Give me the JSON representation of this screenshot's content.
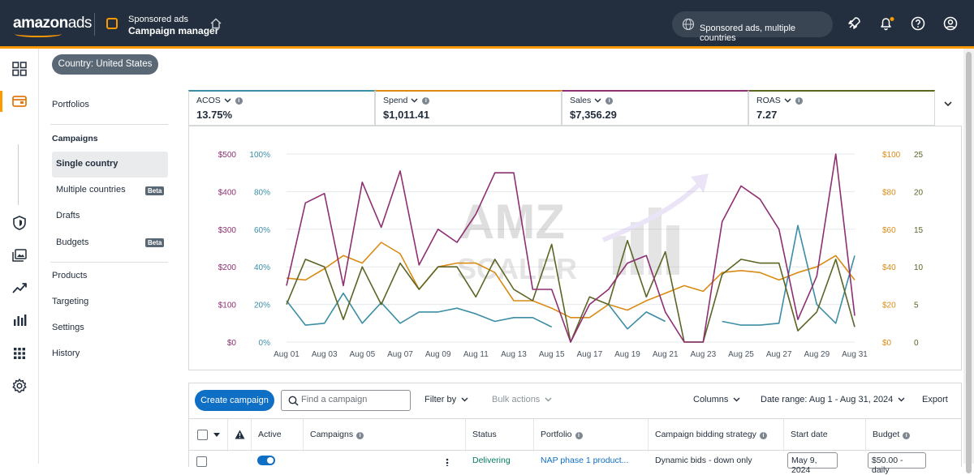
{
  "topbar": {
    "logo_main": "amazon",
    "logo_suffix": "ads",
    "product_line": "Sponsored ads",
    "app_name": "Campaign manager",
    "account_scope": "Sponsored ads, multiple countries"
  },
  "country_filter": "Country: United States",
  "sidenav": {
    "portfolios": "Portfolios",
    "campaigns_heading": "Campaigns",
    "single_country": "Single country",
    "multiple_countries": "Multiple countries",
    "drafts": "Drafts",
    "budgets": "Budgets",
    "beta": "Beta",
    "products": "Products",
    "targeting": "Targeting",
    "settings": "Settings",
    "history": "History"
  },
  "metrics": [
    {
      "label": "ACOS",
      "value": "13.75%",
      "color": "#3b8ea5"
    },
    {
      "label": "Spend",
      "value": "$1,011.41",
      "color": "#d98b16"
    },
    {
      "label": "Sales",
      "value": "$7,356.29",
      "color": "#8e2f72"
    },
    {
      "label": "ROAS",
      "value": "7.27",
      "color": "#5d6424"
    }
  ],
  "chart_data": {
    "type": "line",
    "x": [
      "Aug 01",
      "Aug 02",
      "Aug 03",
      "Aug 04",
      "Aug 05",
      "Aug 06",
      "Aug 07",
      "Aug 08",
      "Aug 09",
      "Aug 10",
      "Aug 11",
      "Aug 12",
      "Aug 13",
      "Aug 14",
      "Aug 15",
      "Aug 16",
      "Aug 17",
      "Aug 18",
      "Aug 19",
      "Aug 20",
      "Aug 21",
      "Aug 22",
      "Aug 23",
      "Aug 24",
      "Aug 25",
      "Aug 26",
      "Aug 27",
      "Aug 28",
      "Aug 29",
      "Aug 30",
      "Aug 31"
    ],
    "x_tick_labels": [
      "Aug 01",
      "Aug 03",
      "Aug 05",
      "Aug 07",
      "Aug 09",
      "Aug 11",
      "Aug 13",
      "Aug 15",
      "Aug 17",
      "Aug 19",
      "Aug 21",
      "Aug 23",
      "Aug 25",
      "Aug 27",
      "Aug 29",
      "Aug 31"
    ],
    "axes": {
      "sales": {
        "ticks": [
          "$0",
          "$100",
          "$200",
          "$300",
          "$400",
          "$500"
        ],
        "range": [
          0,
          500
        ],
        "color": "#8e2f72"
      },
      "acos": {
        "ticks": [
          "0%",
          "20%",
          "40%",
          "60%",
          "80%",
          "100%"
        ],
        "range": [
          0,
          100
        ],
        "color": "#3b8ea5"
      },
      "spend": {
        "ticks": [
          "$0",
          "$20",
          "$40",
          "$60",
          "$80",
          "$100"
        ],
        "range": [
          0,
          100
        ],
        "color": "#d98b16"
      },
      "roas": {
        "ticks": [
          "0",
          "5",
          "10",
          "15",
          "20",
          "25"
        ],
        "range": [
          0,
          25
        ],
        "color": "#5d6424"
      }
    },
    "series": [
      {
        "name": "Sales",
        "axis": "sales",
        "color": "#8e2f72",
        "values": [
          150,
          370,
          395,
          150,
          425,
          305,
          455,
          205,
          300,
          265,
          340,
          450,
          450,
          140,
          140,
          0,
          100,
          140,
          210,
          230,
          80,
          0,
          0,
          320,
          415,
          380,
          300,
          60,
          175,
          500,
          70
        ]
      },
      {
        "name": "ACOS",
        "axis": "acos",
        "color": "#3b8ea5",
        "values": [
          22,
          9,
          10,
          26,
          10,
          21,
          10,
          16,
          16,
          18,
          15,
          11,
          13,
          13,
          8,
          null,
          null,
          20,
          7,
          16,
          11,
          null,
          null,
          11,
          9,
          9,
          10,
          62,
          20,
          10,
          46
        ]
      },
      {
        "name": "Spend",
        "axis": "spend",
        "color": "#d98b16",
        "values": [
          34,
          33,
          39,
          46,
          42,
          53,
          47,
          28,
          40,
          42,
          42,
          37,
          22,
          22,
          18,
          13,
          13,
          20,
          17,
          22,
          26,
          30,
          27,
          37,
          38,
          37,
          33,
          37,
          40,
          46,
          33
        ]
      },
      {
        "name": "ROAS",
        "axis": "roas",
        "color": "#5d6424",
        "values": [
          5,
          11,
          10,
          3,
          10,
          5,
          10.5,
          7,
          10,
          10,
          6,
          11,
          7,
          5.5,
          13,
          0,
          6,
          5,
          13.5,
          6,
          12,
          0,
          0,
          9,
          11,
          10.5,
          10.5,
          1.5,
          4,
          11,
          2
        ]
      }
    ]
  },
  "toolbar": {
    "create_campaign": "Create campaign",
    "search_placeholder": "Find a campaign",
    "filter_by": "Filter by",
    "bulk_actions": "Bulk actions",
    "columns": "Columns",
    "date_range": "Date range: Aug 1 - Aug 31, 2024",
    "export": "Export"
  },
  "table": {
    "headers": {
      "active": "Active",
      "campaigns": "Campaigns",
      "status": "Status",
      "portfolio": "Portfolio",
      "bidding": "Campaign bidding strategy",
      "start_date": "Start date",
      "budget": "Budget"
    },
    "row": {
      "status": "Delivering",
      "portfolio": "NAP phase 1 product...",
      "bidding": "Dynamic bids - down only",
      "start_date": "May 9, 2024",
      "budget": "$50.00 - daily"
    }
  }
}
